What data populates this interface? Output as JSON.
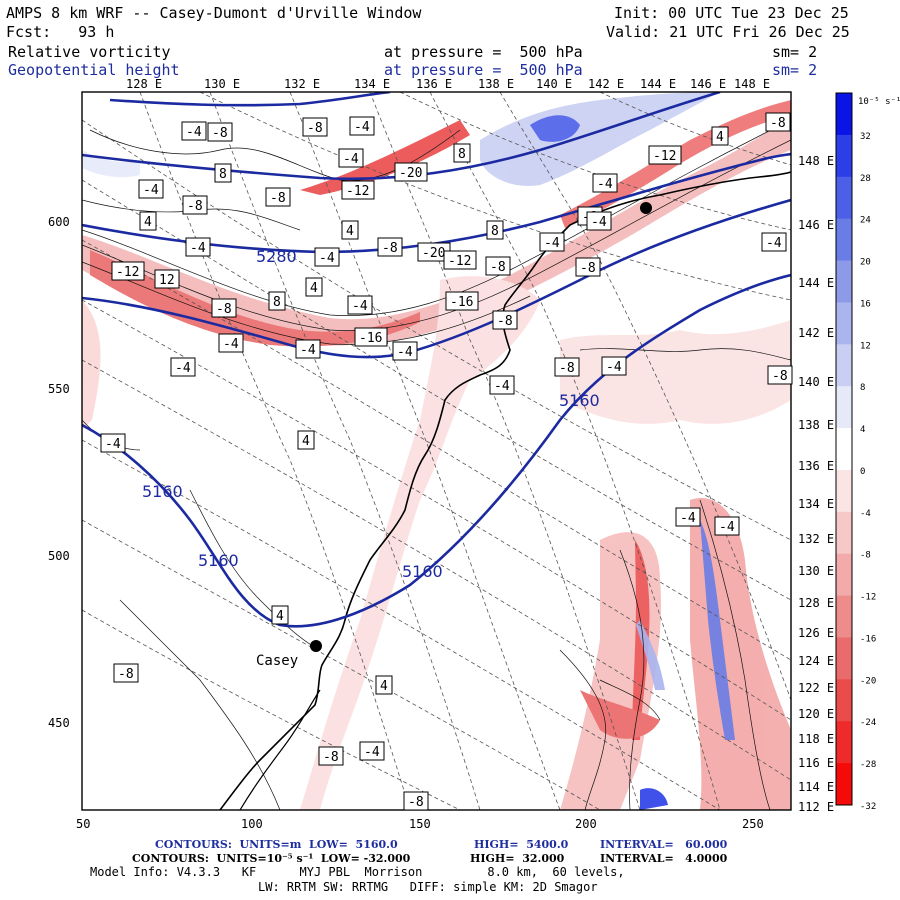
{
  "header": {
    "title": "AMPS 8 km WRF -- Casey-Dumont d'Urville Window",
    "init": "Init: 00 UTC Tue 23 Dec 25",
    "fcst": "Fcst:   93 h",
    "valid": "Valid: 21 UTC Fri 26 Dec 25",
    "field1_name": "Relative vorticity",
    "field1_level": "at pressure =  500 hPa",
    "field1_sm": "sm= 2",
    "field2_name": "Geopotential height",
    "field2_level": "at pressure =  500 hPa",
    "field2_sm": "sm= 2"
  },
  "map": {
    "x_ticks": [
      "50",
      "100",
      "150",
      "200",
      "250"
    ],
    "y_ticks": [
      "450",
      "500",
      "550",
      "600"
    ],
    "top_lon_labels": [
      "128 E",
      "130 E",
      "132 E",
      "134 E",
      "136 E",
      "138 E",
      "140 E",
      "142 E",
      "144 E",
      "146 E",
      "148 E"
    ],
    "right_lon_labels": [
      "148 E",
      "146 E",
      "144 E",
      "142 E",
      "140 E",
      "138 E",
      "136 E",
      "134 E",
      "132 E",
      "130 E",
      "128 E",
      "126 E",
      "124 E",
      "122 E",
      "120 E",
      "118 E",
      "116 E",
      "114 E",
      "112 E"
    ],
    "station": "Casey",
    "height_labels": [
      "5280",
      "5160",
      "5160",
      "5160",
      "5160"
    ],
    "vort_labels": [
      "-4",
      "-8",
      "-8",
      "-4",
      "-4",
      "8",
      "-20",
      "8",
      "-4",
      "-8",
      "-12",
      "-8",
      "4",
      "-4",
      "4",
      "-8",
      "-20",
      "-4",
      "-12",
      "-8",
      "8",
      "12",
      "-12",
      "-8",
      "8",
      "-4",
      "4",
      "-16",
      "-8",
      "-4",
      "-16",
      "-4",
      "-4",
      "-4",
      "4",
      "-4",
      "-8",
      "-4",
      "-8",
      "-4",
      "-8",
      "-4",
      "4",
      "-8",
      "-12",
      "-4",
      "-4",
      "-8",
      "-4",
      "-4",
      "-4",
      "4",
      "-8",
      "4",
      "-8",
      "-4",
      "-8"
    ]
  },
  "colorbar": {
    "unit": "10⁻⁵ s⁻¹",
    "labels": [
      "32",
      "28",
      "24",
      "20",
      "16",
      "12",
      "8",
      "4",
      "0",
      "-4",
      "-8",
      "-12",
      "-16",
      "-20",
      "-24",
      "-28",
      "-32"
    ],
    "colors": [
      "#0a14e6",
      "#2b3ee8",
      "#4b5fe8",
      "#6a7de6",
      "#8c9ae8",
      "#aab4ee",
      "#c9cff3",
      "#e6e9f8",
      "#ffffff",
      "#fbe4e4",
      "#f7c8c8",
      "#f2aaaa",
      "#ee8b8b",
      "#ea6b6b",
      "#ea4b4b",
      "#ee2a2a",
      "#f50a0a"
    ]
  },
  "footer": {
    "line1_a": "CONTOURS:  UNITS=m  LOW=  5160.0",
    "line1_b": "HIGH=  5400.0",
    "line1_c": "INTERVAL=   60.000",
    "line2_a": "CONTOURS:  UNITS=10⁻⁵ s⁻¹  LOW= -32.000",
    "line2_b": "HIGH=  32.000",
    "line2_c": "INTERVAL=   4.0000",
    "line3": "Model Info: V4.3.3   KF      MYJ PBL  Morrison         8.0 km,  60 levels,",
    "line4": "LW: RRTM SW: RRTMG   DIFF: simple KM: 2D Smagor"
  }
}
